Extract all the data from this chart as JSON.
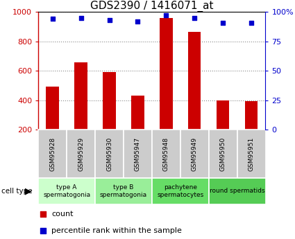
{
  "title": "GDS2390 / 1416071_at",
  "samples": [
    "GSM95928",
    "GSM95929",
    "GSM95930",
    "GSM95947",
    "GSM95948",
    "GSM95949",
    "GSM95950",
    "GSM95951"
  ],
  "counts": [
    490,
    655,
    590,
    430,
    960,
    865,
    400,
    395
  ],
  "percentiles": [
    94,
    95,
    93,
    92,
    97,
    95,
    91,
    91
  ],
  "cell_types": [
    {
      "label": "type A\nspermatogonia",
      "color": "#ccffcc",
      "span": [
        0,
        2
      ]
    },
    {
      "label": "type B\nspermatogonia",
      "color": "#99ee99",
      "span": [
        2,
        4
      ]
    },
    {
      "label": "pachytene\nspermatocytes",
      "color": "#66dd66",
      "span": [
        4,
        6
      ]
    },
    {
      "label": "round spermatids",
      "color": "#55cc55",
      "span": [
        6,
        8
      ]
    }
  ],
  "bar_color": "#cc0000",
  "dot_color": "#0000cc",
  "ylim_left": [
    200,
    1000
  ],
  "ylim_right": [
    0,
    100
  ],
  "yticks_left": [
    200,
    400,
    600,
    800,
    1000
  ],
  "yticks_right": [
    0,
    25,
    50,
    75,
    100
  ],
  "grid_color": "#888888",
  "bg_color": "#ffffff",
  "sample_bg": "#cccccc",
  "bar_width": 0.45,
  "title_fontsize": 11
}
